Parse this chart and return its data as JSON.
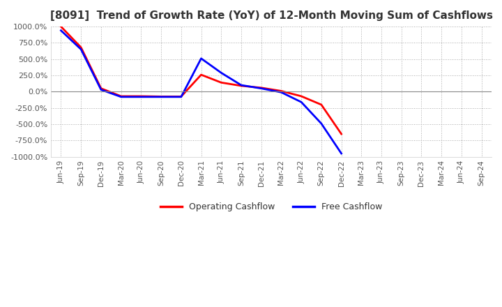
{
  "title": "[8091]  Trend of Growth Rate (YoY) of 12-Month Moving Sum of Cashflows",
  "title_fontsize": 11,
  "ylim": [
    -1000,
    1000
  ],
  "yticks": [
    -1000,
    -750,
    -500,
    -250,
    0,
    250,
    500,
    750,
    1000
  ],
  "background_color": "#ffffff",
  "plot_bg_color": "#ffffff",
  "grid_color": "#aaaaaa",
  "legend": [
    "Operating Cashflow",
    "Free Cashflow"
  ],
  "legend_colors": [
    "#ff0000",
    "#0000ff"
  ],
  "x_labels": [
    "Jun-19",
    "Sep-19",
    "Dec-19",
    "Mar-20",
    "Jun-20",
    "Sep-20",
    "Dec-20",
    "Mar-21",
    "Jun-21",
    "Sep-21",
    "Dec-21",
    "Mar-22",
    "Jun-22",
    "Sep-22",
    "Dec-22",
    "Mar-23",
    "Jun-23",
    "Sep-23",
    "Dec-23",
    "Mar-24",
    "Jun-24",
    "Sep-24"
  ],
  "operating_cashflow": [
    1000,
    680,
    50,
    -70,
    -70,
    -75,
    -75,
    260,
    140,
    90,
    60,
    10,
    -70,
    -200,
    -650,
    null,
    null,
    null,
    null,
    null,
    null,
    null
  ],
  "free_cashflow": [
    940,
    650,
    30,
    -80,
    -80,
    -80,
    -80,
    510,
    290,
    100,
    50,
    -10,
    -160,
    -490,
    -950,
    null,
    null,
    null,
    null,
    null,
    null,
    null
  ]
}
